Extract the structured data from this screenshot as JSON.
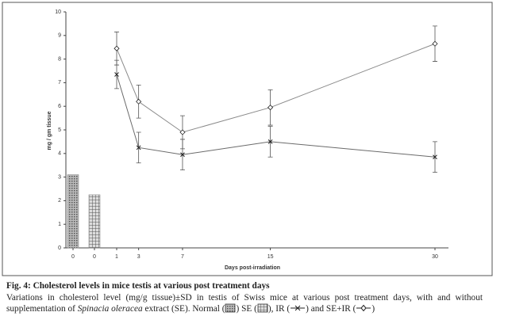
{
  "chart_data": {
    "type": "line",
    "y_label": "mg / gm tissue",
    "x_label": "Days post-irradiation",
    "ylim": [
      0,
      10
    ],
    "yticks": [
      0,
      1,
      2,
      3,
      4,
      5,
      6,
      7,
      8,
      9,
      10
    ],
    "bars": [
      {
        "name": "Normal",
        "category": "0",
        "value": 3.1,
        "color": "#8a8a8a",
        "pattern": "dots"
      },
      {
        "name": "SE",
        "category": "0",
        "value": 2.25,
        "color": "#8a8a8a",
        "pattern": "grid"
      }
    ],
    "x": [
      1,
      3,
      7,
      15,
      30
    ],
    "xlim": [
      1,
      30
    ],
    "xticks": [
      1,
      3,
      7,
      15,
      30
    ],
    "series": [
      {
        "name": "IR",
        "color": "#6a6a6a",
        "marker": "x",
        "values": [
          7.35,
          4.25,
          3.95,
          4.5,
          3.85
        ],
        "errors": [
          0.6,
          0.65,
          0.65,
          0.65,
          0.65
        ]
      },
      {
        "name": "SE+IR",
        "color": "#8a8a8a",
        "marker": "diamond",
        "values": [
          8.45,
          6.2,
          4.9,
          5.95,
          8.65
        ],
        "errors": [
          0.7,
          0.7,
          0.7,
          0.75,
          0.75
        ]
      }
    ]
  },
  "caption": {
    "title": "Fig. 4: Cholesterol levels in mice testis at various post treatment days",
    "body_start": "Variations in cholesterol level (mg/g tissue)±SD in testis of Swiss mice at various post treatment days, with and without supplementation of",
    "species": "Spinacia oleracea",
    "body_end": "extract (SE).",
    "open": "(",
    "close": ")",
    "comma": ",",
    "and": "and"
  }
}
